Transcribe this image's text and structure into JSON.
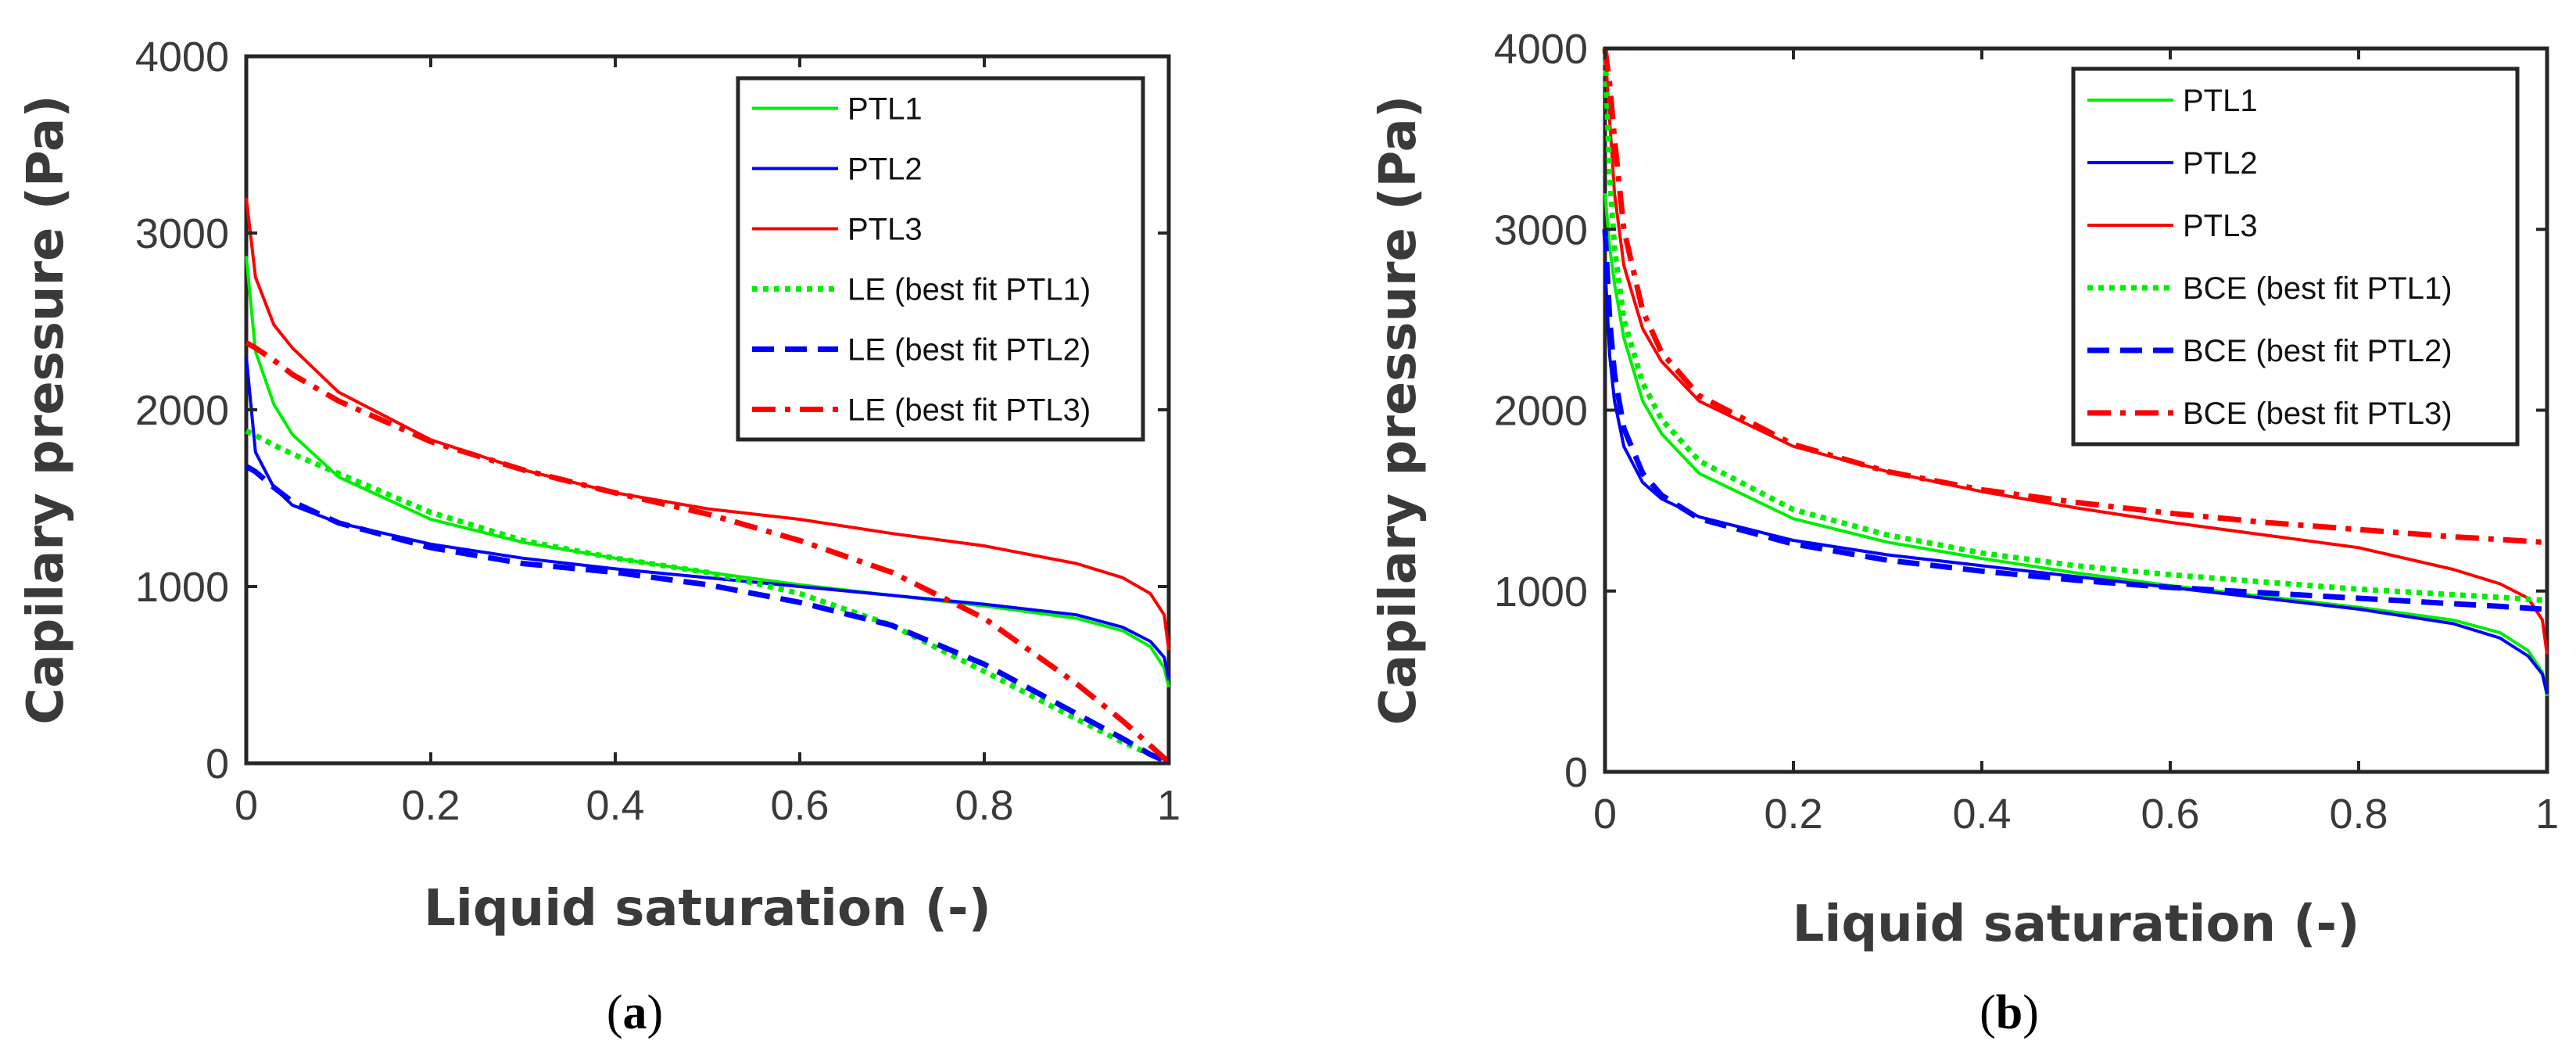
{
  "chart_data": [
    {
      "type": "line",
      "panel_label": "a",
      "xlabel": "Liquid saturation (-)",
      "ylabel": "Capilary pressure (Pa)",
      "xlim": [
        0,
        1
      ],
      "ylim": [
        0,
        4000
      ],
      "xticks": [
        "0",
        "0.2",
        "0.4",
        "0.6",
        "0.8",
        "1"
      ],
      "yticks": [
        "0",
        "1000",
        "2000",
        "3000",
        "4000"
      ],
      "grid": false,
      "legend_position": "top-right",
      "x": [
        0,
        0.01,
        0.03,
        0.05,
        0.1,
        0.2,
        0.3,
        0.4,
        0.5,
        0.6,
        0.7,
        0.8,
        0.9,
        0.95,
        0.98,
        0.995,
        1.0
      ],
      "series": [
        {
          "name": "PTL1",
          "color": "#00ee00",
          "style": "solid",
          "values": [
            2870,
            2330,
            2030,
            1860,
            1620,
            1380,
            1250,
            1160,
            1080,
            1010,
            950,
            890,
            820,
            750,
            660,
            540,
            430
          ]
        },
        {
          "name": "PTL2",
          "color": "#0000ff",
          "style": "solid",
          "values": [
            2300,
            1760,
            1560,
            1460,
            1360,
            1240,
            1160,
            1100,
            1050,
            1000,
            950,
            900,
            840,
            770,
            690,
            600,
            470
          ]
        },
        {
          "name": "PTL3",
          "color": "#ff0000",
          "style": "solid",
          "values": [
            3200,
            2750,
            2480,
            2350,
            2100,
            1830,
            1660,
            1530,
            1440,
            1380,
            1300,
            1230,
            1130,
            1050,
            960,
            840,
            640
          ]
        },
        {
          "name": "LE (best fit PTL1)",
          "color": "#00ee00",
          "style": "dotted",
          "values": [
            1880,
            1855,
            1800,
            1750,
            1640,
            1420,
            1260,
            1160,
            1080,
            960,
            780,
            520,
            250,
            120,
            50,
            15,
            0
          ]
        },
        {
          "name": "LE (best fit PTL2)",
          "color": "#0000ff",
          "style": "dashed",
          "values": [
            1680,
            1650,
            1560,
            1480,
            1360,
            1220,
            1130,
            1080,
            1010,
            910,
            780,
            560,
            280,
            140,
            50,
            15,
            0
          ]
        },
        {
          "name": "LE (best fit PTL3)",
          "color": "#ff0000",
          "style": "dashdot",
          "values": [
            2380,
            2350,
            2280,
            2200,
            2050,
            1820,
            1660,
            1530,
            1410,
            1260,
            1080,
            820,
            450,
            240,
            100,
            30,
            0
          ]
        }
      ]
    },
    {
      "type": "line",
      "panel_label": "b",
      "xlabel": "Liquid saturation (-)",
      "ylabel": "Capilary pressure (Pa)",
      "xlim": [
        0,
        1
      ],
      "ylim": [
        0,
        4000
      ],
      "xticks": [
        "0",
        "0.2",
        "0.4",
        "0.6",
        "0.8",
        "1"
      ],
      "yticks": [
        "0",
        "1000",
        "2000",
        "3000",
        "4000"
      ],
      "grid": false,
      "legend_position": "top-right",
      "x": [
        0,
        0.005,
        0.01,
        0.02,
        0.04,
        0.06,
        0.1,
        0.2,
        0.3,
        0.4,
        0.5,
        0.6,
        0.7,
        0.8,
        0.9,
        0.95,
        0.98,
        0.995,
        1.0
      ],
      "series": [
        {
          "name": "PTL1",
          "color": "#00ee00",
          "style": "solid",
          "values": [
            3200,
            2900,
            2700,
            2400,
            2050,
            1870,
            1650,
            1400,
            1270,
            1180,
            1100,
            1030,
            970,
            910,
            840,
            770,
            670,
            550,
            420
          ]
        },
        {
          "name": "PTL2",
          "color": "#0000ff",
          "style": "solid",
          "values": [
            2800,
            2300,
            2050,
            1800,
            1600,
            1510,
            1410,
            1280,
            1200,
            1140,
            1080,
            1020,
            960,
            900,
            820,
            740,
            640,
            540,
            430
          ]
        },
        {
          "name": "PTL3",
          "color": "#ff0000",
          "style": "solid",
          "values": [
            4000,
            3600,
            3200,
            2800,
            2450,
            2270,
            2050,
            1800,
            1660,
            1550,
            1460,
            1380,
            1310,
            1240,
            1120,
            1040,
            960,
            840,
            650
          ]
        },
        {
          "name": "BCE (best fit PTL1)",
          "color": "#00ee00",
          "style": "dotted",
          "values": [
            4000,
            3300,
            2900,
            2500,
            2150,
            1950,
            1720,
            1450,
            1310,
            1210,
            1140,
            1090,
            1050,
            1010,
            980,
            965,
            955,
            950,
            945
          ]
        },
        {
          "name": "BCE (best fit PTL2)",
          "color": "#0000ff",
          "style": "dashed",
          "values": [
            3000,
            2500,
            2200,
            1900,
            1650,
            1530,
            1400,
            1260,
            1170,
            1110,
            1060,
            1020,
            990,
            960,
            930,
            915,
            905,
            900,
            895
          ]
        },
        {
          "name": "BCE (best fit PTL3)",
          "color": "#ff0000",
          "style": "dashdot",
          "values": [
            4000,
            3800,
            3500,
            3000,
            2550,
            2320,
            2080,
            1810,
            1660,
            1560,
            1490,
            1430,
            1380,
            1340,
            1300,
            1285,
            1275,
            1270,
            1265
          ]
        }
      ]
    }
  ]
}
